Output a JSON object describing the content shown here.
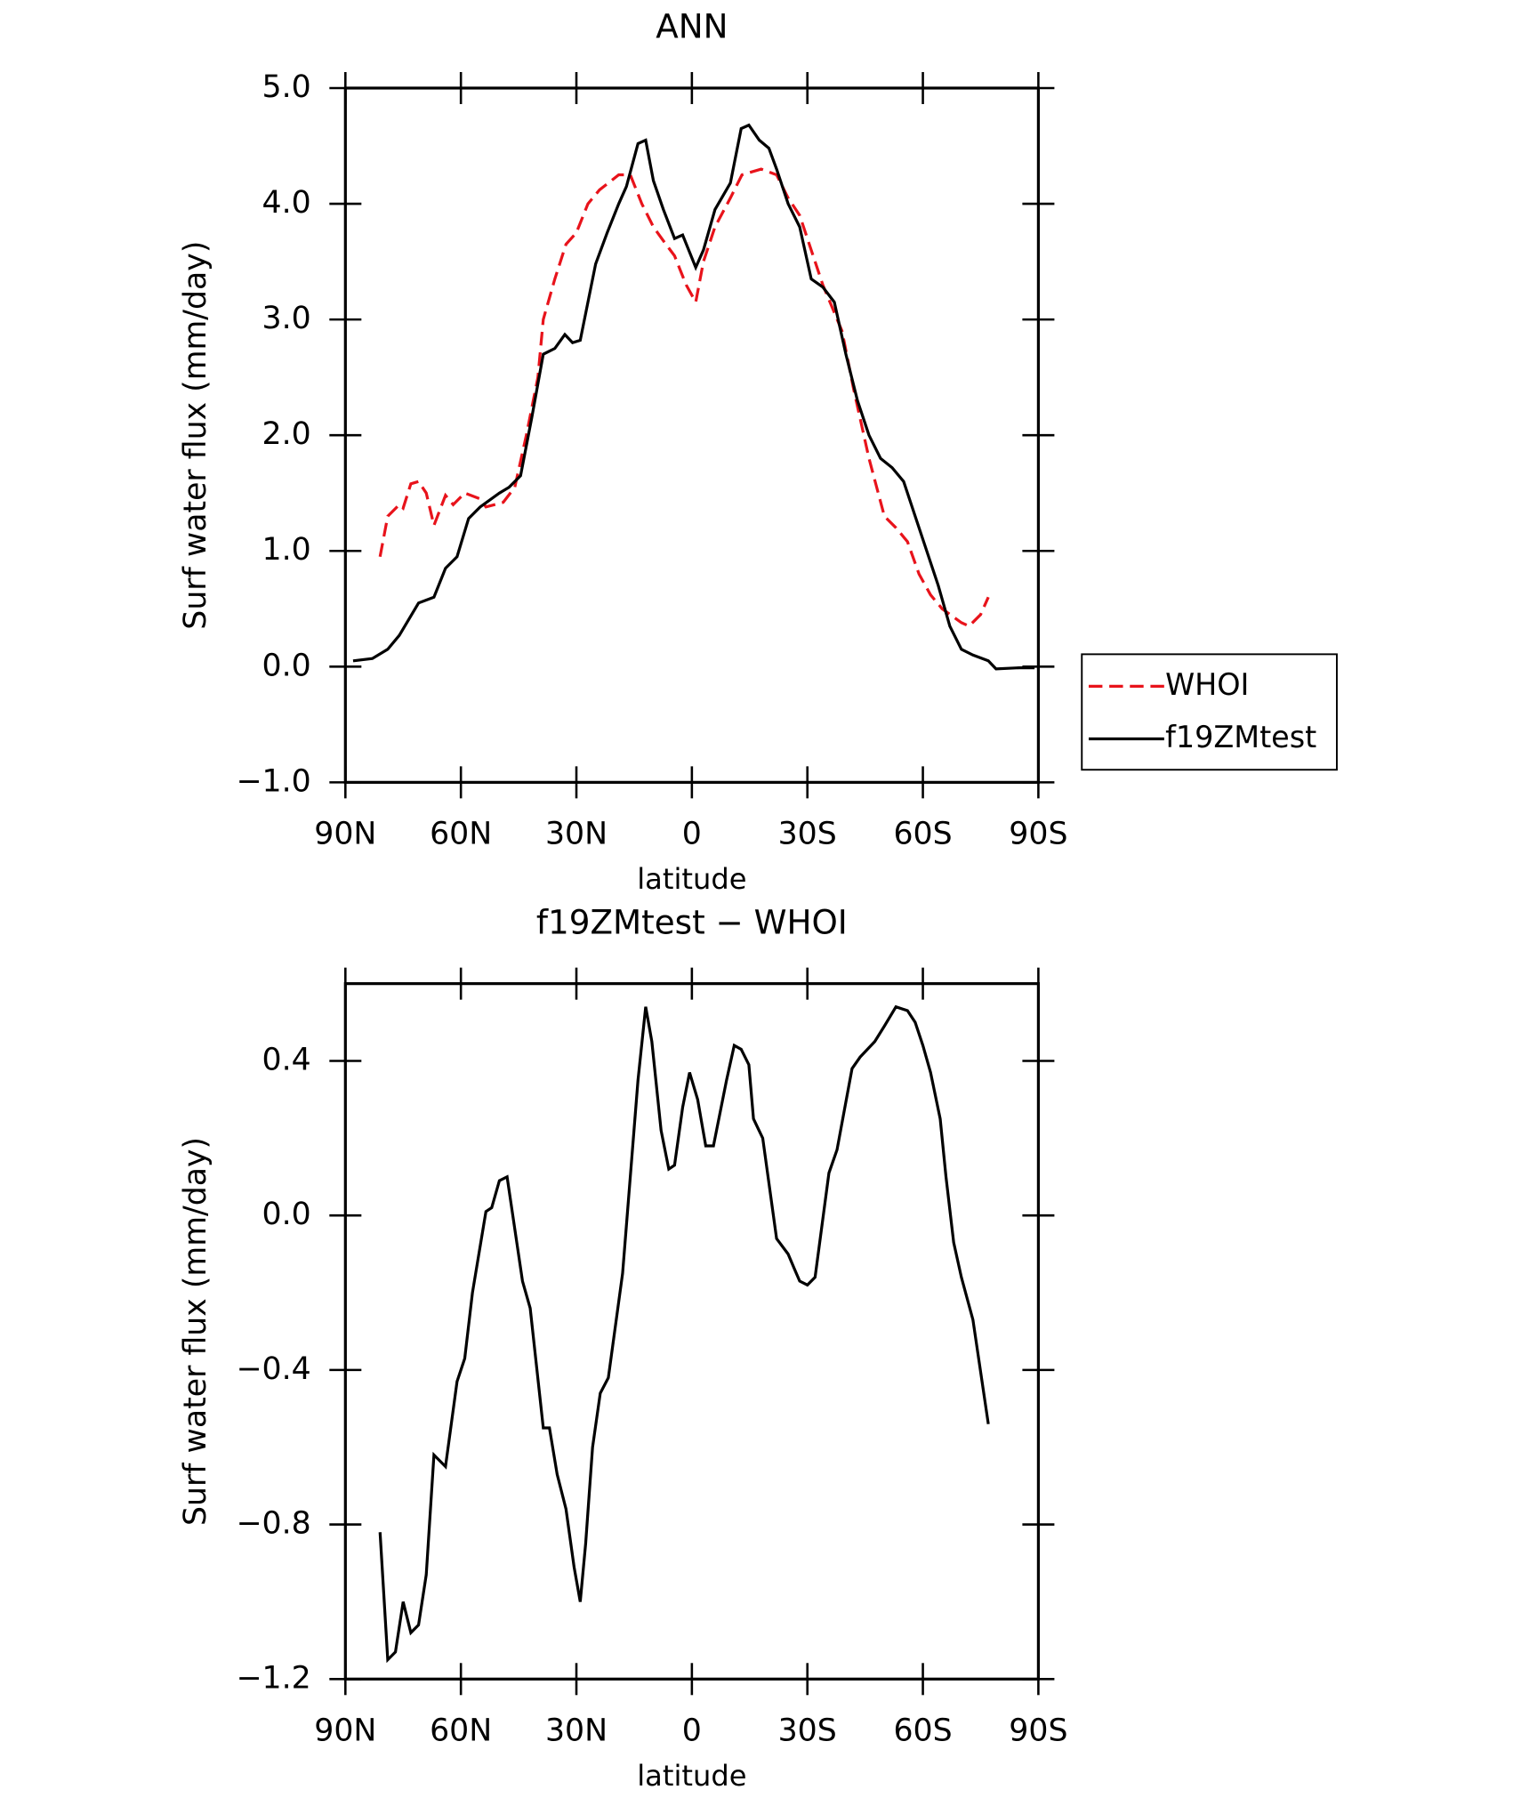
{
  "chart_data": [
    {
      "type": "line",
      "title": "ANN",
      "ylabel": "Surf water flux (mm/day)",
      "xlabel": "latitude",
      "xlim": [
        90,
        -90
      ],
      "xticks": [
        {
          "value": 90,
          "label": "90N"
        },
        {
          "value": 60,
          "label": "60N"
        },
        {
          "value": 30,
          "label": "30N"
        },
        0,
        {
          "value": -30,
          "label": "30S"
        },
        {
          "value": -60,
          "label": "60S"
        },
        {
          "value": -90,
          "label": "90S"
        }
      ],
      "ylim": [
        -1.0,
        5.0
      ],
      "yticks": [
        {
          "value": 5,
          "label": "5.0"
        },
        {
          "value": 4,
          "label": "4.0"
        },
        {
          "value": 3,
          "label": "3.0"
        },
        {
          "value": 2,
          "label": "2.0"
        },
        {
          "value": 1,
          "label": "1.0"
        },
        {
          "value": 0,
          "label": "0.0"
        },
        {
          "value": -1,
          "label": "−1.0"
        }
      ],
      "legend": "outside-right",
      "series": [
        {
          "name": "WHOI",
          "color": "#e8131b",
          "style": "dashed",
          "x": [
            81,
            79,
            76,
            75,
            73,
            71,
            69,
            67,
            64,
            62,
            59,
            55,
            53.5,
            49,
            46,
            43,
            40,
            38.6,
            35.6,
            32.7,
            30,
            27,
            24,
            19,
            16,
            13,
            10,
            7.4,
            4.5,
            1.5,
            -1,
            -3,
            -6,
            -10,
            -13,
            -18,
            -22,
            -25,
            -28,
            -31,
            -34,
            -39,
            -42,
            -46,
            -50,
            -53,
            -56,
            -59,
            -62,
            -65,
            -70,
            -72,
            -75,
            -77
          ],
          "values": [
            0.95,
            1.3,
            1.4,
            1.37,
            1.58,
            1.6,
            1.5,
            1.22,
            1.48,
            1.4,
            1.5,
            1.45,
            1.38,
            1.42,
            1.55,
            2.0,
            2.5,
            3.0,
            3.35,
            3.65,
            3.75,
            4.0,
            4.12,
            4.25,
            4.25,
            4.0,
            3.8,
            3.68,
            3.55,
            3.3,
            3.15,
            3.5,
            3.8,
            4.05,
            4.25,
            4.3,
            4.25,
            4.05,
            3.9,
            3.6,
            3.3,
            2.9,
            2.4,
            1.8,
            1.3,
            1.2,
            1.08,
            0.8,
            0.62,
            0.5,
            0.38,
            0.35,
            0.45,
            0.6
          ]
        },
        {
          "name": "f19ZMtest",
          "color": "#000000",
          "style": "solid",
          "x": [
            88,
            83,
            79,
            76,
            71,
            67,
            64,
            61,
            58,
            55,
            50,
            47.5,
            44.5,
            41.6,
            38.6,
            35.6,
            33,
            31,
            29,
            25,
            22,
            19,
            17,
            14,
            12,
            10,
            7.4,
            4.5,
            2.4,
            -1,
            -3,
            -6,
            -10,
            -12.8,
            -14.8,
            -17.5,
            -20,
            -22,
            -25,
            -28,
            -31,
            -34,
            -37,
            -40,
            -43,
            -46,
            -49,
            -52,
            -55,
            -58,
            -61,
            -64,
            -67,
            -70,
            -73,
            -77,
            -79,
            -85,
            -89
          ],
          "values": [
            0.05,
            0.07,
            0.15,
            0.27,
            0.55,
            0.6,
            0.85,
            0.95,
            1.28,
            1.38,
            1.5,
            1.55,
            1.65,
            2.15,
            2.7,
            2.75,
            2.87,
            2.8,
            2.82,
            3.48,
            3.75,
            4.0,
            4.15,
            4.52,
            4.55,
            4.2,
            3.95,
            3.7,
            3.73,
            3.45,
            3.6,
            3.95,
            4.18,
            4.65,
            4.68,
            4.55,
            4.48,
            4.3,
            4.0,
            3.8,
            3.35,
            3.28,
            3.15,
            2.7,
            2.3,
            2.0,
            1.8,
            1.72,
            1.6,
            1.3,
            1.0,
            0.7,
            0.35,
            0.15,
            0.1,
            0.05,
            -0.02,
            -0.01,
            -0.01
          ]
        }
      ]
    },
    {
      "type": "line",
      "title": "f19ZMtest − WHOI",
      "ylabel": "Surf water flux (mm/day)",
      "xlabel": "latitude",
      "xlim": [
        90,
        -90
      ],
      "xticks": [
        {
          "value": 90,
          "label": "90N"
        },
        {
          "value": 60,
          "label": "60N"
        },
        {
          "value": 30,
          "label": "30N"
        },
        0,
        {
          "value": -30,
          "label": "30S"
        },
        {
          "value": -60,
          "label": "60S"
        },
        {
          "value": -90,
          "label": "90S"
        }
      ],
      "ylim": [
        -1.2,
        0.6
      ],
      "yticks": [
        0.4,
        {
          "value": 0,
          "label": "0.0"
        },
        {
          "value": -0.4,
          "label": "−0.4"
        },
        {
          "value": -0.8,
          "label": "−0.8"
        },
        {
          "value": -1.2,
          "label": "−1.2"
        }
      ],
      "series": [
        {
          "color": "#000000",
          "style": "solid",
          "x": [
            81,
            79,
            77,
            75,
            73,
            71,
            69,
            67,
            64,
            61,
            59,
            57,
            53.5,
            52,
            50,
            48,
            44,
            42,
            38.6,
            37,
            35,
            32.7,
            30.6,
            29,
            27.6,
            25.8,
            23.8,
            21.7,
            18,
            14,
            12,
            10.4,
            8,
            6,
            4.5,
            2.4,
            0.6,
            -1.5,
            -3.6,
            -5.6,
            -9,
            -11,
            -12.8,
            -14.8,
            -16,
            -18.4,
            -22,
            -25,
            -26.7,
            -28,
            -30,
            -32,
            -35.6,
            -37.7,
            -41.6,
            -43.7,
            -47.5,
            -50,
            -53,
            -56,
            -58,
            -60,
            -62,
            -64.5,
            -66,
            -68,
            -70,
            -73,
            -77
          ],
          "values": [
            -0.82,
            -1.15,
            -1.13,
            -1.0,
            -1.08,
            -1.06,
            -0.93,
            -0.62,
            -0.65,
            -0.43,
            -0.37,
            -0.2,
            0.01,
            0.02,
            0.09,
            0.1,
            -0.17,
            -0.24,
            -0.55,
            -0.55,
            -0.67,
            -0.76,
            -0.91,
            -1.0,
            -0.85,
            -0.6,
            -0.46,
            -0.42,
            -0.15,
            0.35,
            0.54,
            0.45,
            0.22,
            0.12,
            0.13,
            0.28,
            0.37,
            0.3,
            0.18,
            0.18,
            0.35,
            0.44,
            0.43,
            0.39,
            0.25,
            0.2,
            -0.06,
            -0.1,
            -0.14,
            -0.17,
            -0.18,
            -0.16,
            0.11,
            0.17,
            0.38,
            0.41,
            0.45,
            0.49,
            0.54,
            0.53,
            0.5,
            0.44,
            0.37,
            0.25,
            0.1,
            -0.07,
            -0.16,
            -0.27,
            -0.54
          ]
        }
      ]
    }
  ]
}
